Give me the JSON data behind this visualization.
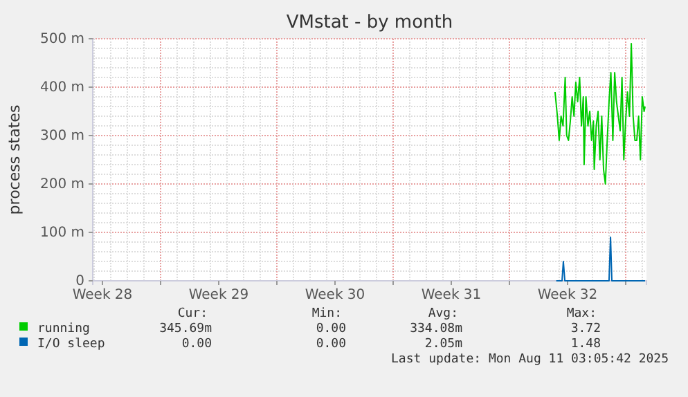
{
  "chart_data": {
    "type": "line",
    "title": "VMstat - by month",
    "ylabel": "process states",
    "xlim": [
      "2025-07-08T22:00",
      "2025-08-11T06:00"
    ],
    "ylim": [
      0,
      500
    ],
    "xticks": [
      {
        "value": "2025-07-09T12:00",
        "label": "Week 28"
      },
      {
        "value": "2025-07-13T00:00",
        "label": null
      },
      {
        "value": "2025-07-16T12:00",
        "label": "Week 29"
      },
      {
        "value": "2025-07-20T00:00",
        "label": null
      },
      {
        "value": "2025-07-23T12:00",
        "label": "Week 30"
      },
      {
        "value": "2025-07-27T00:00",
        "label": null
      },
      {
        "value": "2025-07-30T12:00",
        "label": "Week 31"
      },
      {
        "value": "2025-08-03T00:00",
        "label": null
      },
      {
        "value": "2025-08-06T12:00",
        "label": "Week 32"
      },
      {
        "value": "2025-08-10T00:00",
        "label": null
      }
    ],
    "yticks": [
      {
        "value": 0,
        "label": "0"
      },
      {
        "value": 100,
        "label": "100 m"
      },
      {
        "value": 200,
        "label": "200 m"
      },
      {
        "value": 300,
        "label": "300 m"
      },
      {
        "value": 400,
        "label": "400 m"
      },
      {
        "value": 500,
        "label": "500 m"
      }
    ],
    "grid": true,
    "legend": "bottom",
    "line_style": "solid",
    "marker": "none",
    "series": [
      {
        "name": "running",
        "color": "#00cc00",
        "x": [
          "2025-08-05T17:55",
          "2025-08-05T21:17",
          "2025-08-05T23:55",
          "2025-08-06T02:34",
          "2025-08-06T05:26",
          "2025-08-06T08:34",
          "2025-08-06T10:43",
          "2025-08-06T13:22",
          "2025-08-06T16:00",
          "2025-08-06T18:38",
          "2025-08-06T21:17",
          "2025-08-06T23:55",
          "2025-08-07T02:34",
          "2025-08-07T05:26",
          "2025-08-07T08:05",
          "2025-08-07T10:43",
          "2025-08-07T11:55",
          "2025-08-07T14:34",
          "2025-08-07T17:26",
          "2025-08-07T20:05",
          "2025-08-07T22:43",
          "2025-08-08T01:22",
          "2025-08-08T02:34",
          "2025-08-08T05:26",
          "2025-08-08T08:05",
          "2025-08-08T10:43",
          "2025-08-08T13:22",
          "2025-08-08T16:00",
          "2025-08-08T18:38",
          "2025-08-08T21:17",
          "2025-08-08T23:55",
          "2025-08-09T02:34",
          "2025-08-09T05:26",
          "2025-08-09T08:05",
          "2025-08-09T10:43",
          "2025-08-09T13:22",
          "2025-08-09T16:00",
          "2025-08-09T18:38",
          "2025-08-09T21:17",
          "2025-08-09T23:55",
          "2025-08-10T02:34",
          "2025-08-10T05:26",
          "2025-08-10T08:05",
          "2025-08-10T10:43",
          "2025-08-10T13:22",
          "2025-08-10T16:00",
          "2025-08-10T18:38",
          "2025-08-10T21:17",
          "2025-08-10T23:55",
          "2025-08-11T02:34",
          "2025-08-11T04:00"
        ],
        "values": [
          390,
          340,
          290,
          340,
          320,
          420,
          300,
          290,
          330,
          380,
          340,
          410,
          370,
          420,
          320,
          380,
          240,
          380,
          320,
          350,
          290,
          330,
          230,
          320,
          350,
          250,
          340,
          230,
          200,
          290,
          370,
          430,
          290,
          430,
          370,
          340,
          310,
          420,
          250,
          330,
          390,
          340,
          490,
          340,
          290,
          290,
          340,
          250,
          380,
          350,
          360
        ]
      },
      {
        "name": "I/O sleep",
        "color": "#0066b3",
        "x": [
          "2025-08-05T19:36",
          "2025-08-06T04:00",
          "2025-08-06T05:55",
          "2025-08-06T08:05",
          "2025-08-08T23:55",
          "2025-08-09T02:05",
          "2025-08-09T04:00",
          "2025-08-11T04:00"
        ],
        "values": [
          0,
          0,
          40,
          0,
          0,
          90,
          0,
          0
        ]
      }
    ],
    "annotations": [
      "Cur:",
      "Min:",
      "Avg:",
      "Max:",
      "345.69m",
      "0.00",
      "334.08m",
      "3.72",
      "0.00",
      "0.00",
      "2.05m",
      "1.48",
      "Last update: Mon Aug 11 03:05:42 2025"
    ]
  }
}
